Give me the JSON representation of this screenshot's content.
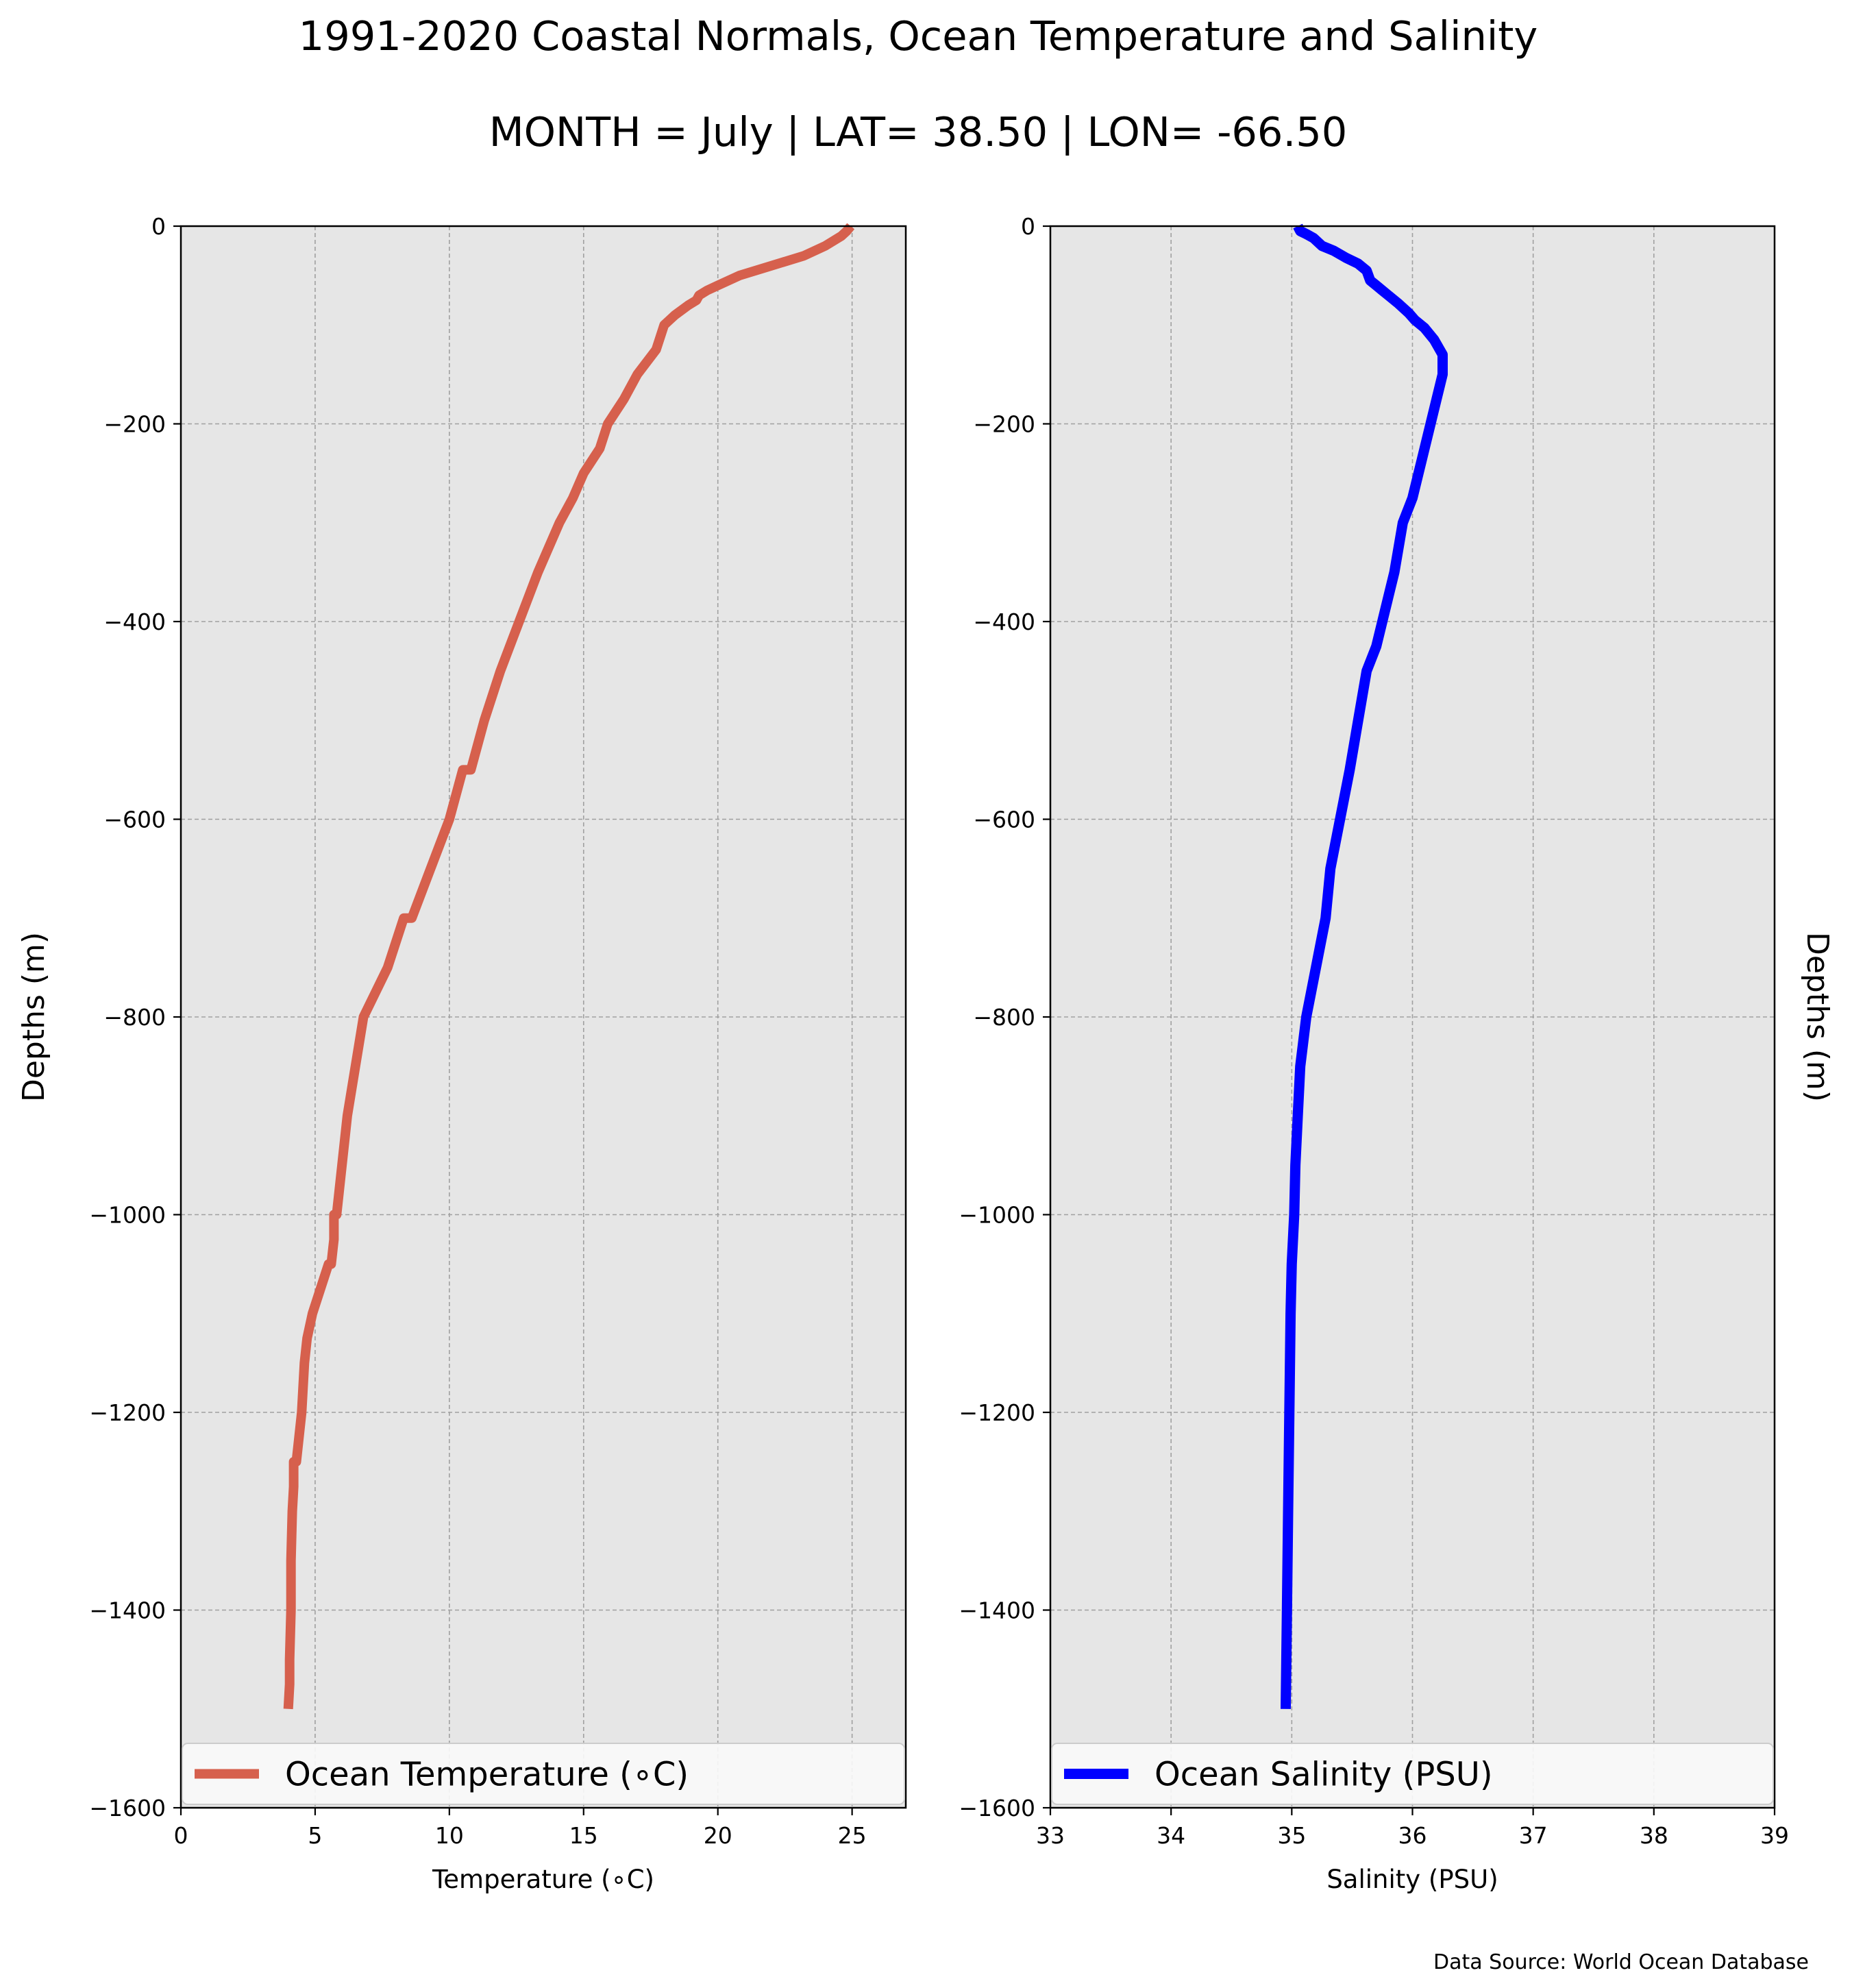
{
  "figure": {
    "title": "1991-2020 Coastal Normals, Ocean Temperature and Salinity",
    "subtitle": "MONTH = July | LAT= 38.50 | LON= -66.50",
    "source": "Data Source: World Ocean Database"
  },
  "chart_data": [
    {
      "type": "line",
      "xlabel": "Temperature ($^\\circ$C)",
      "xlabel_display": "Temperature (∘C)",
      "ylabel": "Depths (m)",
      "xlim": [
        0,
        27
      ],
      "ylim": [
        -1600,
        0
      ],
      "xticks": [
        0,
        5,
        10,
        15,
        20,
        25
      ],
      "yticks": [
        0,
        -200,
        -400,
        -600,
        -800,
        -1000,
        -1200,
        -1400,
        -1600
      ],
      "xtick_labels": [
        "0",
        "5",
        "10",
        "15",
        "20",
        "25"
      ],
      "ytick_labels": [
        "0",
        "−200",
        "−400",
        "−600",
        "−800",
        "−1000",
        "−1200",
        "−1400",
        "−1600"
      ],
      "grid": true,
      "legend_position": "lower center",
      "background_color": "#e6e6e6",
      "series": [
        {
          "name": "Ocean Temperature (∘C)",
          "color": "#d6604d",
          "x": [
            24.95,
            24.8,
            24.6,
            24.0,
            23.2,
            22.0,
            20.8,
            20.0,
            19.6,
            19.3,
            19.2,
            18.9,
            18.4,
            18.2,
            18.0,
            17.7,
            17.0,
            16.5,
            15.9,
            15.6,
            15.0,
            14.6,
            14.1,
            13.3,
            12.6,
            11.9,
            11.3,
            10.8,
            10.5,
            10.0,
            9.3,
            8.6,
            8.3,
            7.7,
            6.8,
            6.5,
            6.2,
            6.0,
            5.9,
            5.8,
            5.7,
            5.7,
            5.6,
            5.5,
            4.9,
            4.7,
            4.6,
            4.5,
            4.4,
            4.3,
            4.2,
            4.2,
            4.15,
            4.1,
            4.1,
            4.05,
            4.05,
            4.0,
            4.0
          ],
          "y": [
            0,
            -5,
            -10,
            -20,
            -30,
            -40,
            -50,
            -60,
            -65,
            -70,
            -75,
            -80,
            -90,
            -95,
            -100,
            -125,
            -150,
            -175,
            -200,
            -225,
            -250,
            -275,
            -300,
            -350,
            -400,
            -450,
            -500,
            -550,
            -550,
            -600,
            -650,
            -700,
            -700,
            -750,
            -800,
            -850,
            -900,
            -950,
            -975,
            -1000,
            -1000,
            -1025,
            -1050,
            -1050,
            -1100,
            -1125,
            -1150,
            -1200,
            -1225,
            -1250,
            -1250,
            -1275,
            -1300,
            -1350,
            -1400,
            -1450,
            -1475,
            -1500,
            -1500
          ]
        }
      ]
    },
    {
      "type": "line",
      "xlabel": "Salinity (PSU)",
      "ylabel": "Depths (m)",
      "xlim": [
        33,
        39
      ],
      "ylim": [
        -1600,
        0
      ],
      "xticks": [
        33,
        34,
        35,
        36,
        37,
        38,
        39
      ],
      "yticks": [
        0,
        -200,
        -400,
        -600,
        -800,
        -1000,
        -1200,
        -1400,
        -1600
      ],
      "xtick_labels": [
        "33",
        "34",
        "35",
        "36",
        "37",
        "38",
        "39"
      ],
      "ytick_labels": [
        "0",
        "−200",
        "−400",
        "−600",
        "−800",
        "−1000",
        "−1200",
        "−1400",
        "−1600"
      ],
      "grid": true,
      "legend_position": "lower center",
      "background_color": "#e6e6e6",
      "series": [
        {
          "name": "Ocean Salinity (PSU)",
          "color": "#0000ff",
          "x": [
            35.05,
            35.07,
            35.12,
            35.18,
            35.25,
            35.35,
            35.45,
            35.55,
            35.62,
            35.65,
            35.7,
            35.75,
            35.8,
            35.88,
            35.97,
            36.02,
            36.1,
            36.18,
            36.25,
            36.25,
            36.2,
            36.15,
            36.1,
            36.0,
            35.92,
            35.85,
            35.8,
            35.75,
            35.7,
            35.62,
            35.55,
            35.48,
            35.4,
            35.32,
            35.28,
            35.2,
            35.12,
            35.07,
            35.05,
            35.03,
            35.02,
            35.0,
            34.99,
            34.98,
            34.97,
            34.96,
            34.95
          ],
          "y": [
            0,
            -5,
            -8,
            -12,
            -20,
            -25,
            -32,
            -38,
            -45,
            -55,
            -60,
            -65,
            -70,
            -78,
            -88,
            -95,
            -103,
            -115,
            -130,
            -150,
            -175,
            -200,
            -225,
            -275,
            -300,
            -350,
            -375,
            -400,
            -425,
            -450,
            -500,
            -550,
            -600,
            -650,
            -700,
            -750,
            -800,
            -850,
            -900,
            -950,
            -1000,
            -1050,
            -1100,
            -1200,
            -1300,
            -1400,
            -1500
          ]
        }
      ]
    }
  ]
}
